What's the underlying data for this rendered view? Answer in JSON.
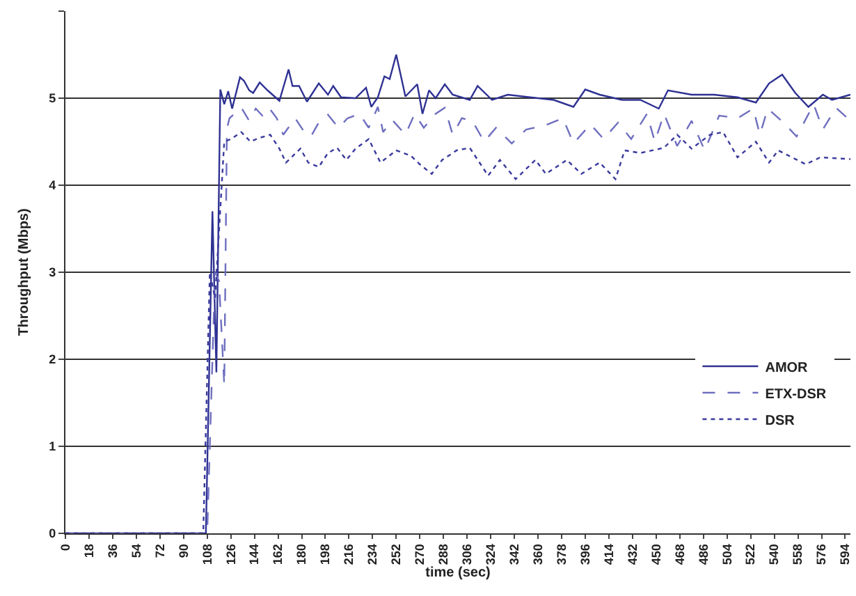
{
  "chart_data": {
    "type": "line",
    "xlabel": "time (sec)",
    "ylabel": "Throughput (Mbps)",
    "xlim": [
      0,
      598
    ],
    "ylim": [
      0,
      6
    ],
    "xticks": [
      0,
      18,
      36,
      54,
      72,
      90,
      108,
      126,
      144,
      162,
      180,
      198,
      216,
      234,
      252,
      270,
      288,
      306,
      324,
      342,
      360,
      378,
      396,
      414,
      432,
      450,
      468,
      486,
      504,
      522,
      540,
      558,
      576,
      594
    ],
    "yticks": [
      0,
      1,
      2,
      3,
      4,
      5,
      {
        "value": 6,
        "label": null
      }
    ],
    "grid": "y",
    "legend": "bottom right",
    "marker": "none",
    "series": [
      {
        "name": "AMOR",
        "color": "#2e3192",
        "line_style": "solid",
        "x": [
          0,
          107,
          112,
          115,
          118,
          121,
          124,
          127,
          133,
          136,
          140,
          143,
          148,
          154,
          163,
          170,
          173,
          178,
          184,
          193,
          200,
          204,
          210,
          221,
          229,
          233,
          238,
          243,
          247,
          252,
          259,
          268,
          272,
          277,
          282,
          289,
          295,
          308,
          314,
          325,
          337,
          354,
          372,
          387,
          396,
          407,
          424,
          438,
          452,
          459,
          477,
          494,
          512,
          526,
          536,
          546,
          556,
          566,
          577,
          584,
          598
        ],
        "values": [
          0,
          0,
          3.7,
          1.85,
          5.1,
          4.93,
          5.08,
          4.88,
          5.24,
          5.2,
          5.09,
          5.06,
          5.18,
          5.09,
          4.97,
          5.33,
          5.14,
          5.14,
          4.96,
          5.17,
          5.04,
          5.14,
          5.01,
          5.0,
          5.12,
          4.9,
          5.01,
          5.25,
          5.22,
          5.5,
          5.02,
          5.16,
          4.82,
          5.09,
          5.0,
          5.16,
          5.04,
          4.98,
          5.14,
          4.98,
          5.04,
          5.01,
          4.98,
          4.9,
          5.1,
          5.04,
          4.98,
          4.98,
          4.88,
          5.09,
          5.04,
          5.04,
          5.01,
          4.95,
          5.17,
          5.27,
          5.06,
          4.9,
          5.04,
          4.98,
          5.04
        ]
      },
      {
        "name": "ETX-DSR",
        "color": "#6f6fc0",
        "line_style": "dashed",
        "x": [
          0,
          108,
          114,
          117,
          121,
          123,
          125,
          134,
          140,
          145,
          150,
          155,
          161,
          166,
          175,
          182,
          187,
          193,
          200,
          208,
          215,
          224,
          231,
          238,
          242,
          249,
          259,
          266,
          273,
          282,
          289,
          295,
          302,
          310,
          319,
          328,
          340,
          351,
          366,
          379,
          387,
          400,
          410,
          421,
          431,
          443,
          449,
          456,
          466,
          477,
          487,
          498,
          512,
          524,
          529,
          535,
          547,
          557,
          570,
          577,
          587,
          598
        ],
        "values": [
          0,
          0,
          3.0,
          2.9,
          1.7,
          4.65,
          4.77,
          4.89,
          4.74,
          4.88,
          4.8,
          4.89,
          4.77,
          4.58,
          4.77,
          4.61,
          4.56,
          4.72,
          4.81,
          4.66,
          4.77,
          4.82,
          4.66,
          4.9,
          4.61,
          4.75,
          4.58,
          4.82,
          4.66,
          4.82,
          4.89,
          4.58,
          4.77,
          4.74,
          4.5,
          4.66,
          4.48,
          4.64,
          4.69,
          4.77,
          4.48,
          4.7,
          4.53,
          4.72,
          4.53,
          4.82,
          4.5,
          4.82,
          4.45,
          4.74,
          4.4,
          4.8,
          4.77,
          4.88,
          4.58,
          4.88,
          4.72,
          4.56,
          4.93,
          4.64,
          4.89,
          4.74
        ]
      },
      {
        "name": "DSR",
        "color": "#3a3a9e",
        "line_style": "dotted",
        "x": [
          0,
          105,
          110,
          114,
          121,
          126,
          134,
          141,
          147,
          156,
          163,
          168,
          179,
          185,
          193,
          200,
          207,
          214,
          221,
          231,
          240,
          252,
          263,
          270,
          279,
          287,
          298,
          308,
          322,
          331,
          343,
          358,
          366,
          382,
          393,
          407,
          419,
          426,
          438,
          456,
          466,
          477,
          491,
          501,
          512,
          526,
          536,
          543,
          564,
          575,
          598
        ],
        "values": [
          0,
          0,
          3.0,
          2.7,
          4.5,
          4.53,
          4.61,
          4.5,
          4.54,
          4.58,
          4.42,
          4.26,
          4.42,
          4.26,
          4.21,
          4.37,
          4.43,
          4.29,
          4.42,
          4.53,
          4.26,
          4.4,
          4.34,
          4.24,
          4.13,
          4.29,
          4.4,
          4.43,
          4.11,
          4.29,
          4.07,
          4.29,
          4.13,
          4.29,
          4.13,
          4.26,
          4.07,
          4.4,
          4.37,
          4.43,
          4.58,
          4.42,
          4.58,
          4.61,
          4.32,
          4.5,
          4.26,
          4.4,
          4.24,
          4.32,
          4.3
        ]
      }
    ]
  }
}
